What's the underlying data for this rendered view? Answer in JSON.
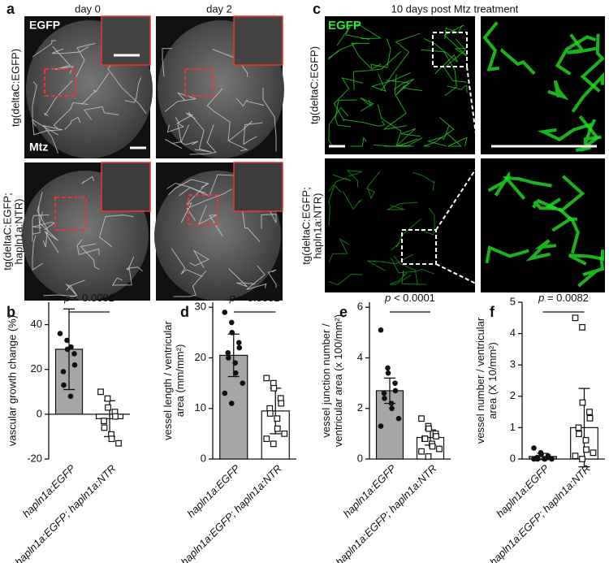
{
  "images": {
    "a": {
      "label": "a",
      "columns": [
        "day 0",
        "day 2"
      ],
      "channel": "EGFP",
      "treatment": "Mtz",
      "rows": [
        [
          "tg(deltaC:EGFP)"
        ],
        [
          "tg(deltaC:EGFP;",
          "hapln1a:NTR)"
        ]
      ]
    },
    "c": {
      "label": "c",
      "title": "10 days post Mtz treatment",
      "channel": "EGFP",
      "rows": [
        [
          "tg(deltaC:EGFP)"
        ],
        [
          "tg(deltaC:EGFP;",
          "hapln1a:NTR)"
        ]
      ]
    }
  },
  "chart_data": [
    {
      "type": "bar",
      "label": "b",
      "ylabel": [
        "vascular growth change (%)"
      ],
      "annotation_symbol": "p",
      "annotation": "< 0.0001",
      "categories": [
        "hapln1a:EGFP",
        "hapln1a:EGFP; hapln1a:NTR"
      ],
      "values": [
        29,
        -2
      ],
      "errors": [
        18,
        8
      ],
      "points": [
        [
          36,
          33,
          29,
          27,
          22,
          19,
          13,
          8,
          30
        ],
        [
          10,
          7,
          3,
          1,
          -1,
          -3,
          -6,
          -9,
          -11,
          -13
        ]
      ],
      "colors": [
        "#a6a6a6",
        "#ffffff"
      ],
      "markers": [
        "circle",
        "square"
      ],
      "ylim": [
        -20,
        50
      ],
      "yticks": [
        -20,
        0,
        20,
        40
      ]
    },
    {
      "type": "bar",
      "label": "d",
      "ylabel": [
        "vessel length / ventricular",
        "area (mm/mm²)"
      ],
      "annotation_symbol": "p",
      "annotation": "< 0.0001",
      "categories": [
        "hapln1a:EGFP",
        "hapln1a:EGFP; hapln1a:NTR"
      ],
      "values": [
        20.5,
        9.5
      ],
      "errors": [
        4.2,
        4.5
      ],
      "points": [
        [
          29,
          27,
          25,
          23,
          22,
          21,
          20,
          19,
          17,
          15,
          13,
          11
        ],
        [
          16,
          15,
          14,
          12,
          11,
          10,
          9,
          8,
          6,
          5,
          4,
          3
        ]
      ],
      "colors": [
        "#a6a6a6",
        "#ffffff"
      ],
      "markers": [
        "circle",
        "square"
      ],
      "ylim": [
        0,
        31
      ],
      "yticks": [
        0,
        10,
        20,
        30
      ]
    },
    {
      "type": "bar",
      "label": "e",
      "ylabel": [
        "vessel junction number /",
        "ventricular area (x 100/mm²)"
      ],
      "annotation_symbol": "p",
      "annotation": "< 0.0001",
      "categories": [
        "hapln1a:EGFP",
        "hapln1a:EGFP; hapln1a:NTR"
      ],
      "values": [
        2.7,
        0.85
      ],
      "errors": [
        0.5,
        0.3
      ],
      "points": [
        [
          5.1,
          3.6,
          3.4,
          3.0,
          2.7,
          2.6,
          2.4,
          2.2,
          2.0,
          1.6,
          1.3
        ],
        [
          1.6,
          1.3,
          1.2,
          1.0,
          0.9,
          0.8,
          0.8,
          0.6,
          0.5,
          0.4,
          0.3,
          0.1
        ]
      ],
      "colors": [
        "#a6a6a6",
        "#ffffff"
      ],
      "markers": [
        "circle",
        "square"
      ],
      "ylim": [
        0,
        6.2
      ],
      "yticks": [
        0,
        2,
        4,
        6
      ]
    },
    {
      "type": "bar",
      "label": "f",
      "ylabel": [
        "vessel number / ventricular",
        "area (X 10/mm²)"
      ],
      "annotation_symbol": "p",
      "annotation": "= 0.0082",
      "categories": [
        "hapln1a:EGFP",
        "hapln1a:EGFP; hapln1a:NTR"
      ],
      "values": [
        0.08,
        1.0
      ],
      "errors": [
        0.1,
        1.25
      ],
      "points": [
        [
          0.35,
          0.2,
          0.15,
          0.1,
          0.05,
          0.05,
          0,
          0,
          0,
          0,
          0
        ],
        [
          4.5,
          4.2,
          1.8,
          1.5,
          1.3,
          1.0,
          0.8,
          0.6,
          0.3,
          0.2,
          0.1,
          0
        ]
      ],
      "colors": [
        "#a6a6a6",
        "#ffffff"
      ],
      "markers": [
        "circle",
        "square"
      ],
      "ylim": [
        0,
        5
      ],
      "yticks": [
        0,
        1,
        2,
        3,
        4,
        5
      ]
    }
  ]
}
